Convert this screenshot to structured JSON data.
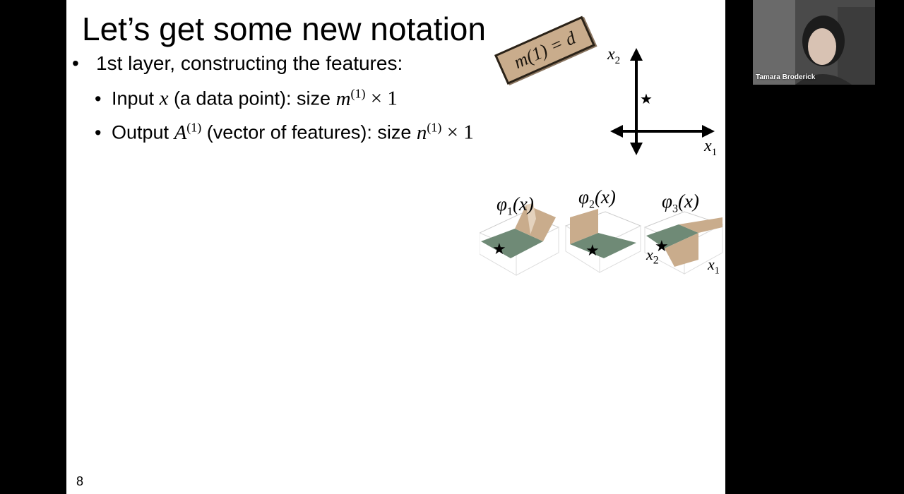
{
  "slide": {
    "title": "Let’s get some new notation",
    "bullets": {
      "level1": {
        "marker": "•",
        "text": "1st layer, constructing the features:"
      },
      "input": {
        "marker": "•",
        "prefix": "Input ",
        "var": "x",
        "middle": " (a data point): size ",
        "size_var": "m",
        "size_sup": "(1)",
        "size_rest": " × 1"
      },
      "output": {
        "marker": "•",
        "prefix": "Output ",
        "var": "A",
        "var_sup": "(1)",
        "middle": " (vector of features): size ",
        "size_var": "n",
        "size_sup": "(1)",
        "size_rest": " × 1"
      }
    },
    "annotation_note": "m(1) = d",
    "axes": {
      "x1": "x",
      "x1_sub": "1",
      "x2": "x",
      "x2_sub": "2",
      "point_marker": "★"
    },
    "plots": [
      {
        "phi": "φ",
        "sub": "1",
        "arg": "(x)"
      },
      {
        "phi": "φ",
        "sub": "2",
        "arg": "(x)"
      },
      {
        "phi": "φ",
        "sub": "3",
        "arg": "(x)"
      }
    ],
    "plot_axis_labels": {
      "x2": "x",
      "x2_sub": "2",
      "x1": "x",
      "x1_sub": "1"
    },
    "page_number": "8"
  },
  "video": {
    "participant_name": "Tamara Broderick"
  },
  "colors": {
    "slide_bg": "#ffffff",
    "frame_bg": "#000000",
    "surface_green": "#6f8a76",
    "surface_tan": "#c9ac8c",
    "note_box": "#c9ac8c"
  }
}
